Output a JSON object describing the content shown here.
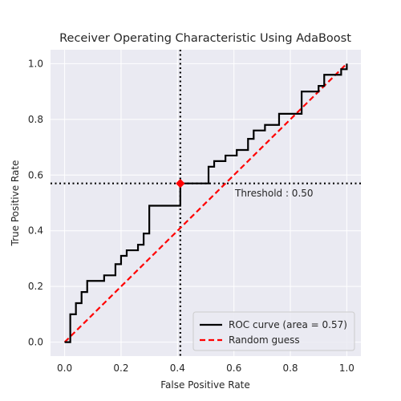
{
  "chart_data": {
    "type": "line",
    "title": "Receiver Operating Characteristic Using AdaBoost",
    "xlabel": "False Positive Rate",
    "ylabel": "True Positive Rate",
    "xlim": [
      -0.05,
      1.05
    ],
    "ylim": [
      -0.05,
      1.05
    ],
    "xticks": [
      "0.0",
      "0.2",
      "0.4",
      "0.6",
      "0.8",
      "1.0"
    ],
    "yticks": [
      "0.0",
      "0.2",
      "0.4",
      "0.6",
      "0.8",
      "1.0"
    ],
    "grid": true,
    "background": "#eaeaf2",
    "legend_position": "lower-right",
    "series": [
      {
        "name": "ROC curve (area = 0.57)",
        "color": "#000000",
        "style": "solid",
        "x": [
          0.0,
          0.02,
          0.02,
          0.04,
          0.04,
          0.06,
          0.06,
          0.08,
          0.08,
          0.14,
          0.14,
          0.18,
          0.18,
          0.2,
          0.2,
          0.22,
          0.22,
          0.26,
          0.26,
          0.28,
          0.28,
          0.3,
          0.3,
          0.41,
          0.41,
          0.51,
          0.51,
          0.53,
          0.53,
          0.57,
          0.57,
          0.61,
          0.61,
          0.65,
          0.65,
          0.67,
          0.67,
          0.71,
          0.71,
          0.76,
          0.76,
          0.84,
          0.84,
          0.9,
          0.9,
          0.92,
          0.92,
          0.98,
          0.98,
          1.0,
          1.0
        ],
        "y": [
          0.0,
          0.0,
          0.1,
          0.1,
          0.14,
          0.14,
          0.18,
          0.18,
          0.22,
          0.22,
          0.24,
          0.24,
          0.28,
          0.28,
          0.31,
          0.31,
          0.33,
          0.33,
          0.35,
          0.35,
          0.39,
          0.39,
          0.49,
          0.49,
          0.57,
          0.57,
          0.63,
          0.63,
          0.65,
          0.65,
          0.67,
          0.67,
          0.69,
          0.69,
          0.73,
          0.73,
          0.76,
          0.76,
          0.78,
          0.78,
          0.82,
          0.82,
          0.9,
          0.9,
          0.92,
          0.92,
          0.96,
          0.96,
          0.98,
          0.98,
          1.0
        ]
      },
      {
        "name": "Random guess",
        "color": "#ff0000",
        "style": "dashed",
        "x": [
          0,
          1
        ],
        "y": [
          0,
          1
        ]
      }
    ],
    "threshold": {
      "label": "Threshold : 0.50",
      "x": 0.41,
      "y": 0.57,
      "line_color": "#000000",
      "marker_color": "#ff0000",
      "marker": "diamond"
    }
  }
}
